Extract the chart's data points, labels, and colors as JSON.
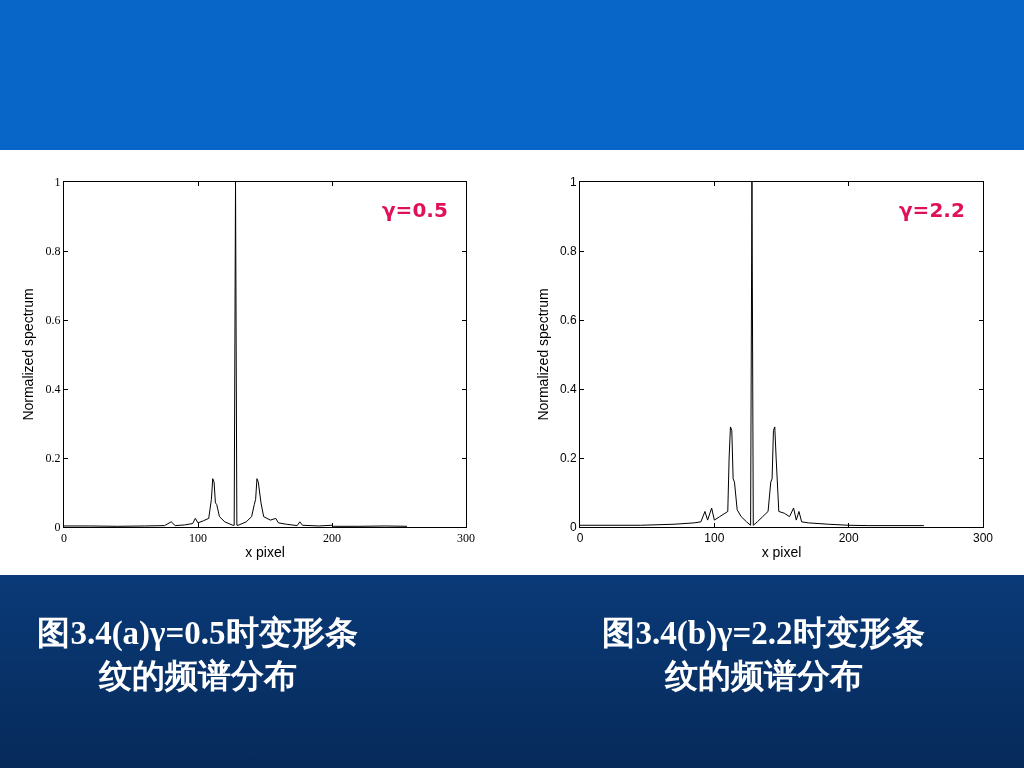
{
  "chart_data": [
    {
      "type": "line",
      "xlabel": "x pixel",
      "ylabel": "Normalized spectrum",
      "xlim": [
        0,
        300
      ],
      "xticks": [
        0,
        100,
        200,
        300
      ],
      "ylim": [
        0,
        1
      ],
      "yticks": [
        0,
        0.2,
        0.4,
        0.6,
        0.8,
        1
      ],
      "grid": false,
      "legend": false,
      "marker": "none",
      "line_style": "solid",
      "annotations": [
        "γ=0.5",
        "图3.4(a)γ=0.5时变形条纹的频谱分布"
      ],
      "series": [
        {
          "color": "#000000",
          "x": [
            0,
            20,
            40,
            60,
            75,
            80,
            83,
            90,
            96,
            98,
            100,
            104,
            108,
            110,
            111,
            112,
            113,
            114,
            116,
            120,
            126,
            127,
            128,
            129,
            130,
            136,
            140,
            142,
            143,
            144,
            145,
            147,
            149,
            154,
            158,
            160,
            166,
            174,
            176,
            178,
            190,
            200,
            201,
            220,
            240,
            256
          ],
          "values": [
            0.003,
            0.003,
            0.002,
            0.003,
            0.004,
            0.015,
            0.004,
            0.006,
            0.01,
            0.025,
            0.012,
            0.018,
            0.025,
            0.08,
            0.14,
            0.13,
            0.07,
            0.065,
            0.03,
            0.015,
            0.005,
            0.005,
            1.0,
            0.005,
            0.005,
            0.015,
            0.03,
            0.065,
            0.08,
            0.14,
            0.13,
            0.07,
            0.03,
            0.02,
            0.025,
            0.012,
            0.008,
            0.004,
            0.015,
            0.005,
            0.003,
            0.005,
            0.002,
            0.002,
            0.003,
            0.002
          ]
        }
      ]
    },
    {
      "type": "line",
      "xlabel": "x pixel",
      "ylabel": "Normalized spectrum",
      "xlim": [
        0,
        300
      ],
      "xticks": [
        0,
        100,
        200,
        300
      ],
      "ylim": [
        0,
        1
      ],
      "yticks": [
        0,
        0.2,
        0.4,
        0.6,
        0.8,
        1
      ],
      "grid": false,
      "legend": false,
      "marker": "none",
      "line_style": "solid",
      "annotations": [
        "γ=2.2",
        "图3.4(b)γ=2.2时变形条纹的频谱分布"
      ],
      "series": [
        {
          "color": "#000000",
          "x": [
            0,
            45,
            70,
            85,
            90,
            93,
            95,
            98,
            100,
            104,
            108,
            110,
            111,
            112,
            113,
            114,
            115,
            117,
            120,
            124,
            127,
            128,
            129,
            132,
            136,
            140,
            142,
            143,
            144,
            145,
            146,
            148,
            152,
            156,
            159,
            161,
            163,
            165,
            170,
            185,
            200,
            215,
            256
          ],
          "values": [
            0.005,
            0.005,
            0.008,
            0.012,
            0.015,
            0.045,
            0.02,
            0.055,
            0.02,
            0.03,
            0.04,
            0.045,
            0.2,
            0.29,
            0.28,
            0.14,
            0.13,
            0.05,
            0.03,
            0.015,
            0.005,
            1.0,
            0.005,
            0.015,
            0.03,
            0.045,
            0.13,
            0.14,
            0.28,
            0.29,
            0.2,
            0.045,
            0.04,
            0.03,
            0.055,
            0.02,
            0.045,
            0.015,
            0.012,
            0.008,
            0.005,
            0.004,
            0.004
          ]
        }
      ]
    }
  ]
}
